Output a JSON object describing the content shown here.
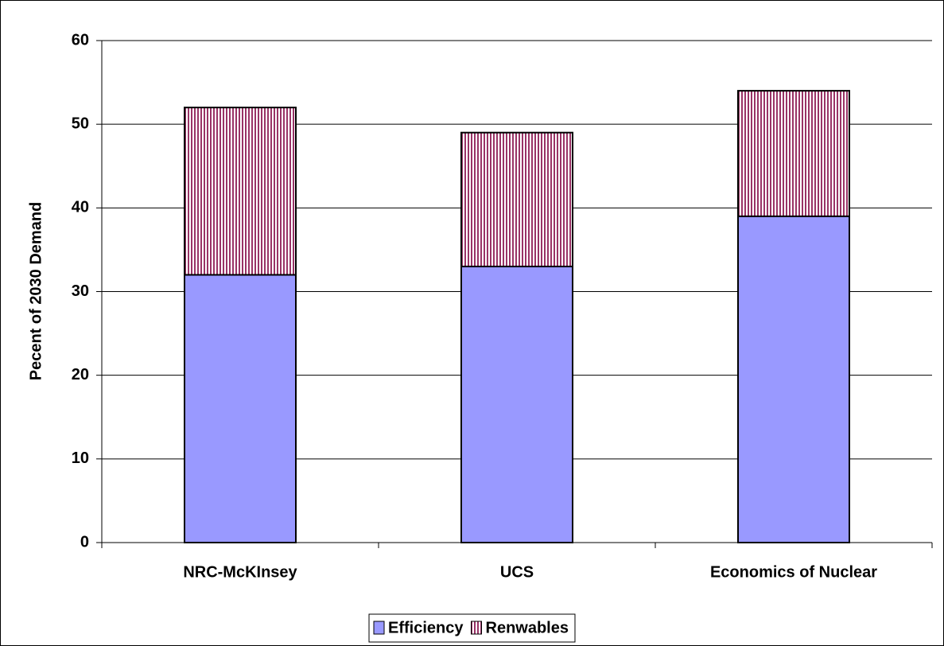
{
  "chart_data": {
    "type": "stacked-bar",
    "y_label": "Pecent of 2030 Demand",
    "categories": [
      "NRC-McKInsey",
      "UCS",
      "Economics of Nuclear"
    ],
    "series": [
      {
        "name": "Efficiency",
        "color": "#9999ff",
        "values": [
          32,
          33,
          39
        ]
      },
      {
        "name": "Renwables",
        "color": "#993366",
        "pattern": "vertical-lines",
        "values": [
          20,
          16,
          15
        ]
      }
    ],
    "ylim": [
      0,
      60
    ],
    "yticks": [
      0,
      10,
      20,
      30,
      40,
      50,
      60
    ],
    "grid": true,
    "legend": "bottom"
  }
}
